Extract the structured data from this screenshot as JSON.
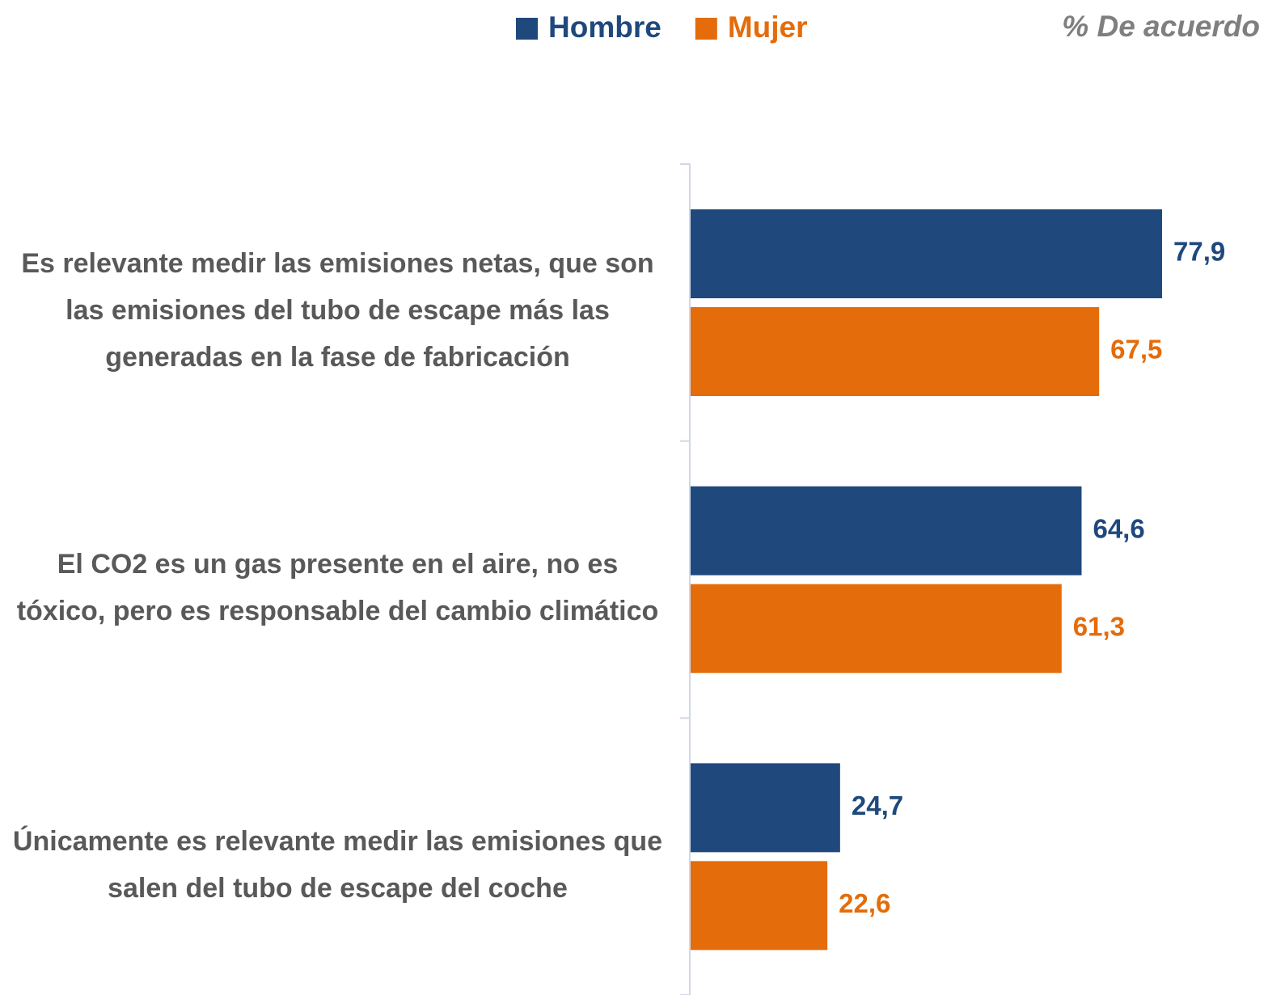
{
  "chart_data": {
    "type": "bar",
    "orientation": "horizontal",
    "annotation": "% De acuerdo",
    "categories": [
      "Es relevante medir las emisiones netas, que son las emisiones del tubo de escape más las generadas en la fase de fabricación",
      "El CO2 es un gas presente en el aire, no es tóxico, pero es responsable del cambio climático",
      "Únicamente es relevante medir las emisiones que salen del tubo de escape del coche"
    ],
    "series": [
      {
        "name": "Hombre",
        "color": "#1f497d",
        "values": [
          77.9,
          64.6,
          24.7
        ],
        "value_labels": [
          "77,9",
          "64,6",
          "24,7"
        ]
      },
      {
        "name": "Mujer",
        "color": "#e46c0a",
        "values": [
          67.5,
          61.3,
          22.6
        ],
        "value_labels": [
          "67,5",
          "61,3",
          "22,6"
        ]
      }
    ],
    "xlim": [
      0,
      95
    ],
    "legend": "top"
  }
}
